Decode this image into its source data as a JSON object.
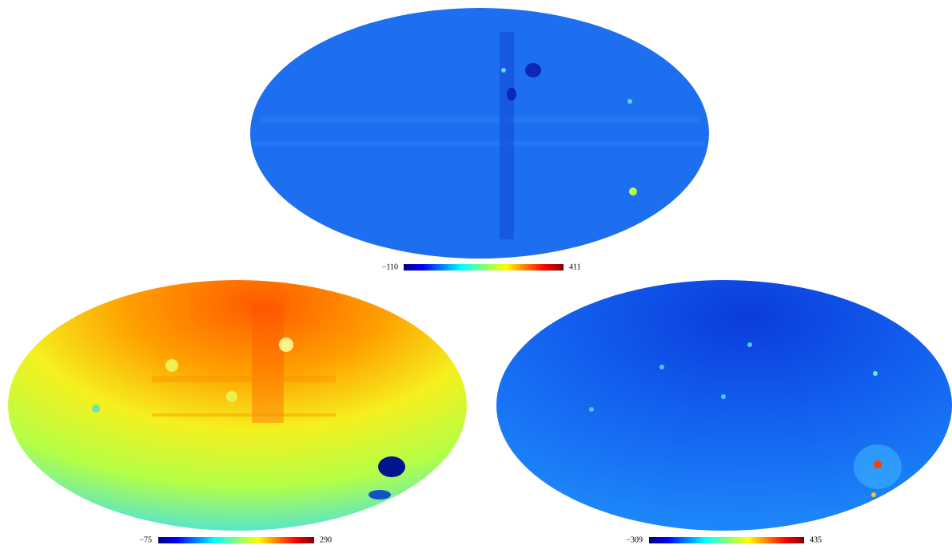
{
  "panels": [
    {
      "colorbar": {
        "min_label": "−110",
        "max_label": "411"
      }
    },
    {
      "colorbar": {
        "min_label": "−75",
        "max_label": "290"
      }
    },
    {
      "colorbar": {
        "min_label": "−309",
        "max_label": "435"
      }
    }
  ]
}
